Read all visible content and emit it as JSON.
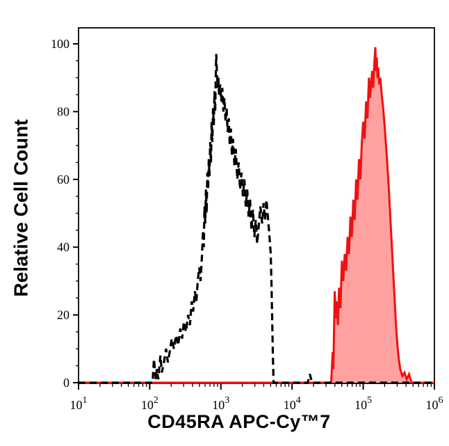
{
  "chart_data": {
    "type": "area",
    "subtype": "flow-cytometry-histogram",
    "title": "",
    "xlabel": "CD45RA APC-Cy™7",
    "ylabel": "Relative Cell Count",
    "x_scale": "log10",
    "x_log_range": [
      1,
      6
    ],
    "x_decade_ticks": [
      1,
      2,
      3,
      4,
      5,
      6
    ],
    "x_tick_base": "10",
    "ylim": [
      0,
      100
    ],
    "y_major_ticks": [
      0,
      20,
      40,
      60,
      80,
      100
    ],
    "y_minor_step": 5,
    "grid": false,
    "legend": "none",
    "frame_color": "#000000",
    "background_color": "#ffffff",
    "series": [
      {
        "name": "cd45ra-stained-red-filled",
        "line_style": "solid",
        "line_color": "#ee1111",
        "fill_color": "#ffa1a1",
        "line_width": 3,
        "peak_x_approx": 150000,
        "peak_y_approx": 99,
        "points": [
          [
            1.0,
            0
          ],
          [
            4.55,
            0
          ],
          [
            4.57,
            9
          ],
          [
            4.58,
            4
          ],
          [
            4.6,
            27
          ],
          [
            4.615,
            19
          ],
          [
            4.63,
            24
          ],
          [
            4.645,
            17
          ],
          [
            4.66,
            28
          ],
          [
            4.68,
            22
          ],
          [
            4.7,
            36
          ],
          [
            4.72,
            30
          ],
          [
            4.74,
            38
          ],
          [
            4.76,
            33
          ],
          [
            4.78,
            43
          ],
          [
            4.8,
            38
          ],
          [
            4.82,
            49
          ],
          [
            4.84,
            43
          ],
          [
            4.86,
            54
          ],
          [
            4.88,
            48
          ],
          [
            4.9,
            60
          ],
          [
            4.92,
            54
          ],
          [
            4.94,
            66
          ],
          [
            4.96,
            60
          ],
          [
            4.98,
            71
          ],
          [
            5.0,
            77
          ],
          [
            5.02,
            72
          ],
          [
            5.04,
            83
          ],
          [
            5.06,
            78
          ],
          [
            5.08,
            90
          ],
          [
            5.095,
            84
          ],
          [
            5.11,
            88
          ],
          [
            5.125,
            92
          ],
          [
            5.14,
            87
          ],
          [
            5.155,
            94
          ],
          [
            5.17,
            99
          ],
          [
            5.18,
            92
          ],
          [
            5.19,
            96
          ],
          [
            5.2,
            90
          ],
          [
            5.21,
            93
          ],
          [
            5.225,
            88
          ],
          [
            5.24,
            90
          ],
          [
            5.26,
            85
          ],
          [
            5.28,
            81
          ],
          [
            5.3,
            76
          ],
          [
            5.32,
            70
          ],
          [
            5.34,
            64
          ],
          [
            5.36,
            57
          ],
          [
            5.38,
            49
          ],
          [
            5.4,
            41
          ],
          [
            5.42,
            33
          ],
          [
            5.44,
            25
          ],
          [
            5.46,
            17
          ],
          [
            5.48,
            11
          ],
          [
            5.5,
            7
          ],
          [
            5.52,
            4
          ],
          [
            5.55,
            2
          ],
          [
            5.58,
            3
          ],
          [
            5.61,
            1
          ],
          [
            5.645,
            2.5
          ],
          [
            5.68,
            0
          ],
          [
            6.0,
            0
          ]
        ]
      },
      {
        "name": "control-dashed-black",
        "line_style": "dashed",
        "line_color": "#000000",
        "fill_color": "none",
        "line_width": 3.2,
        "peak_x_approx": 850,
        "peak_y_approx": 97,
        "points": [
          [
            1.0,
            0
          ],
          [
            2.04,
            0
          ],
          [
            2.06,
            7
          ],
          [
            2.085,
            1
          ],
          [
            2.1,
            4
          ],
          [
            2.12,
            1
          ],
          [
            2.15,
            8
          ],
          [
            2.17,
            3
          ],
          [
            2.2,
            6
          ],
          [
            2.23,
            10
          ],
          [
            2.255,
            6
          ],
          [
            2.28,
            9
          ],
          [
            2.31,
            13
          ],
          [
            2.34,
            10
          ],
          [
            2.37,
            14
          ],
          [
            2.4,
            11
          ],
          [
            2.43,
            16
          ],
          [
            2.455,
            13
          ],
          [
            2.48,
            18
          ],
          [
            2.51,
            15
          ],
          [
            2.54,
            20
          ],
          [
            2.565,
            17
          ],
          [
            2.59,
            24
          ],
          [
            2.61,
            21
          ],
          [
            2.635,
            27
          ],
          [
            2.655,
            24
          ],
          [
            2.675,
            30
          ],
          [
            2.695,
            34
          ],
          [
            2.715,
            30
          ],
          [
            2.735,
            38
          ],
          [
            2.75,
            45
          ],
          [
            2.76,
            40
          ],
          [
            2.77,
            52
          ],
          [
            2.78,
            47
          ],
          [
            2.79,
            57
          ],
          [
            2.8,
            50
          ],
          [
            2.81,
            62
          ],
          [
            2.82,
            57
          ],
          [
            2.83,
            66
          ],
          [
            2.84,
            61
          ],
          [
            2.85,
            71
          ],
          [
            2.86,
            65
          ],
          [
            2.87,
            77
          ],
          [
            2.88,
            71
          ],
          [
            2.89,
            81
          ],
          [
            2.9,
            76
          ],
          [
            2.91,
            86
          ],
          [
            2.92,
            80
          ],
          [
            2.927,
            89
          ],
          [
            2.935,
            97
          ],
          [
            2.945,
            91
          ],
          [
            2.955,
            87
          ],
          [
            2.965,
            90
          ],
          [
            2.975,
            85
          ],
          [
            2.99,
            88
          ],
          [
            3.005,
            83
          ],
          [
            3.02,
            87
          ],
          [
            3.035,
            80
          ],
          [
            3.05,
            84
          ],
          [
            3.065,
            77
          ],
          [
            3.08,
            81
          ],
          [
            3.095,
            74
          ],
          [
            3.11,
            78
          ],
          [
            3.125,
            70
          ],
          [
            3.14,
            75
          ],
          [
            3.155,
            67
          ],
          [
            3.17,
            72
          ],
          [
            3.19,
            64
          ],
          [
            3.21,
            69
          ],
          [
            3.23,
            60
          ],
          [
            3.25,
            65
          ],
          [
            3.27,
            57
          ],
          [
            3.29,
            62
          ],
          [
            3.31,
            55
          ],
          [
            3.33,
            60
          ],
          [
            3.35,
            52
          ],
          [
            3.37,
            57
          ],
          [
            3.39,
            49
          ],
          [
            3.41,
            54
          ],
          [
            3.43,
            45
          ],
          [
            3.45,
            51
          ],
          [
            3.47,
            43
          ],
          [
            3.49,
            48
          ],
          [
            3.51,
            41
          ],
          [
            3.53,
            46
          ],
          [
            3.555,
            52
          ],
          [
            3.58,
            47
          ],
          [
            3.6,
            53
          ],
          [
            3.62,
            48
          ],
          [
            3.64,
            54
          ],
          [
            3.66,
            49
          ],
          [
            3.68,
            44
          ],
          [
            3.7,
            38
          ],
          [
            3.71,
            30
          ],
          [
            3.72,
            20
          ],
          [
            3.73,
            8
          ],
          [
            3.74,
            0
          ],
          [
            4.22,
            0
          ],
          [
            4.25,
            2.5
          ],
          [
            4.28,
            0
          ],
          [
            6.0,
            0
          ]
        ]
      }
    ]
  }
}
